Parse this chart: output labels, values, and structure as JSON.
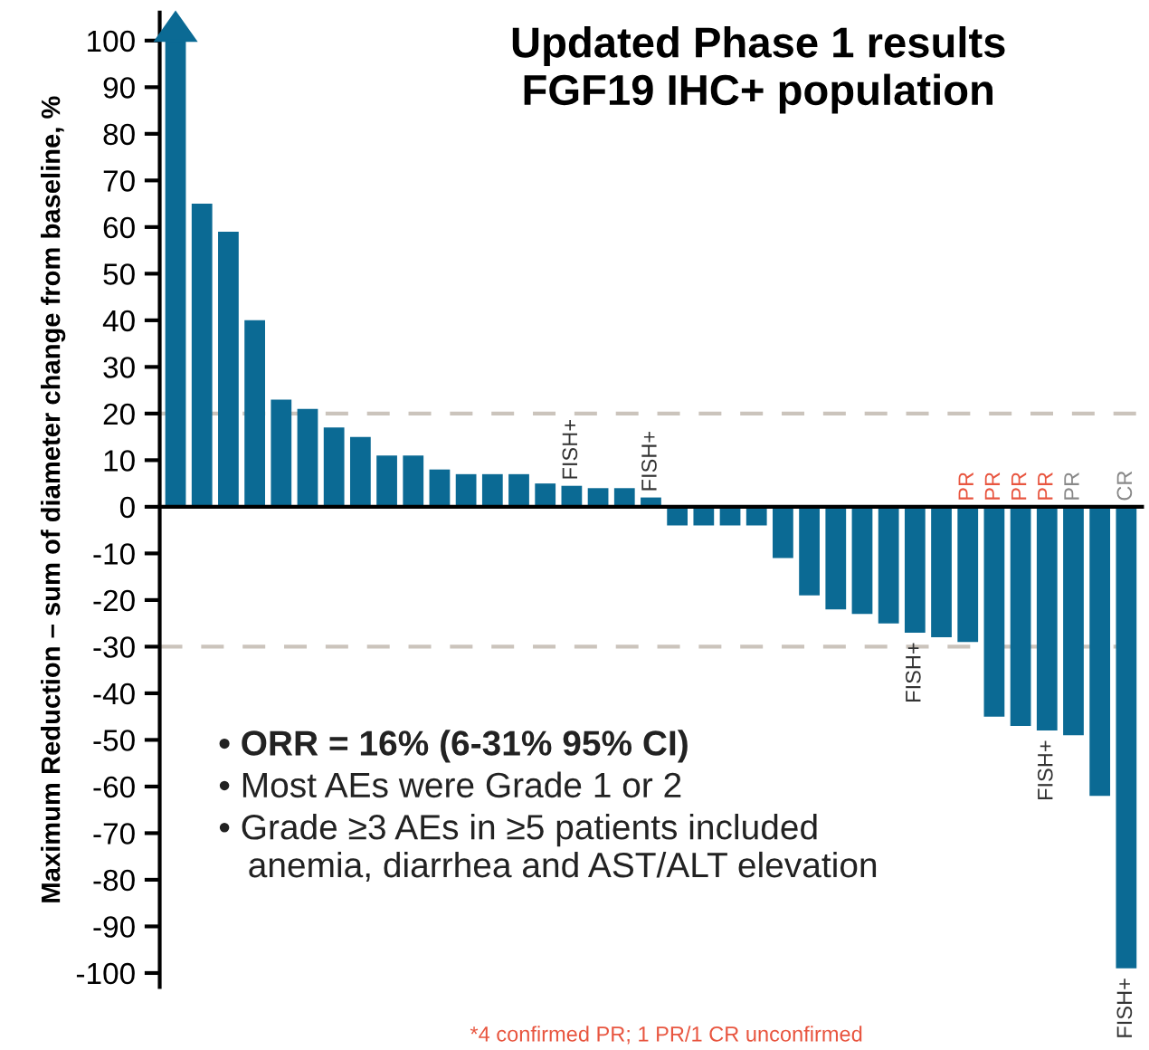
{
  "chart_data": {
    "type": "bar",
    "title": "Updated Phase 1 results\nFGF19 IHC+ population",
    "ylabel": "Maximum Reduction – sum of diameter change from baseline, %",
    "categories": [
      null,
      null,
      null,
      null,
      null,
      null,
      null,
      null,
      null,
      null,
      null,
      null,
      null,
      null,
      null,
      null,
      null,
      null,
      null,
      null,
      null,
      null,
      null,
      null,
      null,
      null,
      null,
      null,
      null,
      null,
      null,
      null,
      null,
      null,
      null,
      null,
      null
    ],
    "values": [
      100,
      65,
      59,
      40,
      23,
      21,
      17,
      15,
      11,
      11,
      8,
      7,
      7,
      7,
      5,
      4.5,
      4,
      4,
      2,
      -4,
      -4,
      -4,
      -4,
      -11,
      -19,
      -22,
      -23,
      -25,
      -27,
      -28,
      -29,
      -45,
      -47,
      -48,
      -49,
      -62,
      -99
    ],
    "value_labels": [
      null,
      null,
      null,
      null,
      null,
      null,
      null,
      null,
      null,
      null,
      null,
      null,
      null,
      null,
      null,
      null,
      null,
      null,
      null,
      null,
      null,
      null,
      null,
      null,
      null,
      null,
      null,
      null,
      null,
      null,
      "PR",
      "PR",
      "PR",
      "PR",
      "PR",
      null,
      "CR"
    ],
    "color": "#0b6a94",
    "ylim": [
      -103,
      106
    ],
    "yticks": [
      -100,
      -90,
      -80,
      -70,
      -60,
      -50,
      -40,
      -30,
      -20,
      -10,
      0,
      10,
      20,
      30,
      40,
      50,
      60,
      70,
      80,
      90,
      100
    ],
    "ref_lines": [
      {
        "axis": "y",
        "value": 20,
        "color": "#cbc4bc",
        "line_style": "dashed"
      },
      {
        "axis": "y",
        "value": -30,
        "color": "#cbc4bc",
        "line_style": "dashed"
      }
    ],
    "annotations": [
      {
        "text": "FISH+",
        "y": 4.5
      },
      {
        "text": "FISH+",
        "y": 2
      },
      {
        "text": "FISH+",
        "y": -27
      },
      {
        "text": "FISH+",
        "y": -48
      },
      {
        "text": "FISH+",
        "y": -99
      },
      "• ORR = 16% (6-31% 95% CI)",
      "• Most AEs were Grade 1 or 2",
      "• Grade ≥3 AEs in ≥5 patients included\n   anemia, diarrhea and AST/ALT elevation",
      "*4 confirmed PR; 1 PR/1 CR unconfirmed"
    ],
    "grid": false,
    "legend": false
  }
}
